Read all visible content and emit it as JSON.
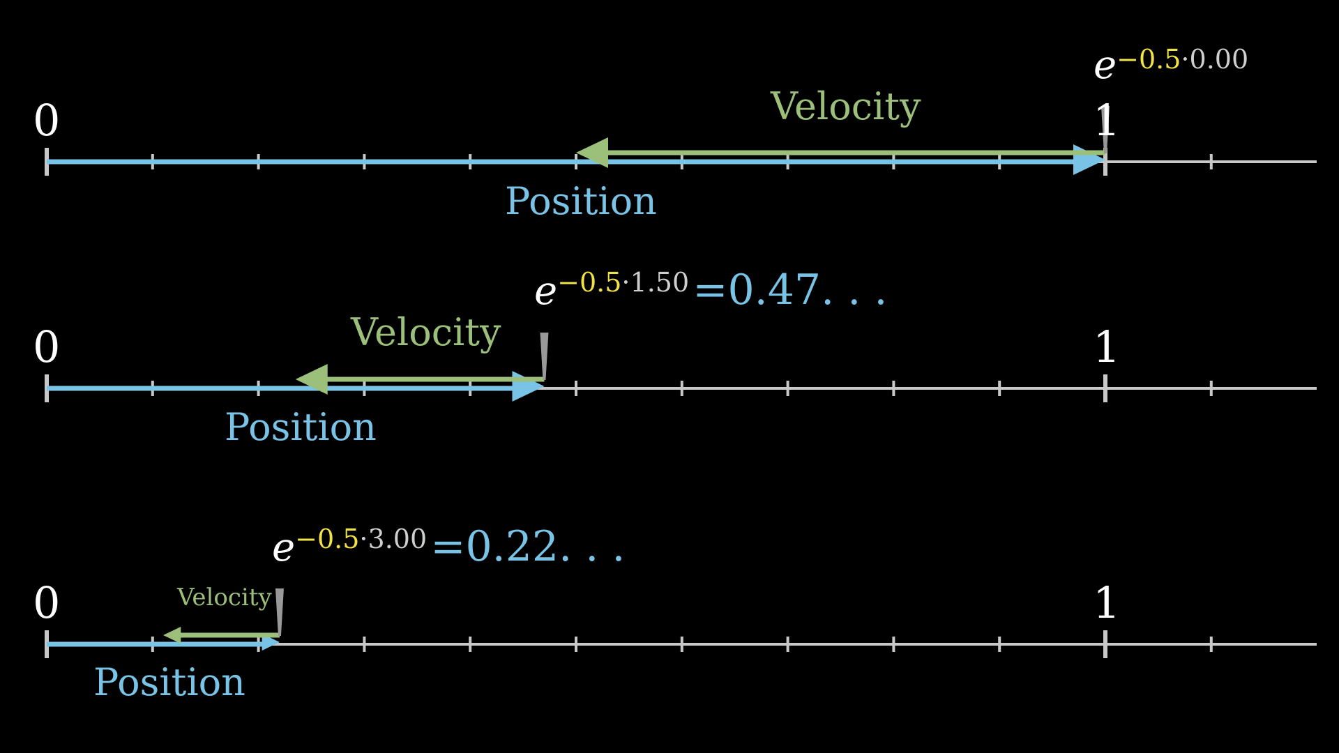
{
  "colors": {
    "background": "#000000",
    "axis": "#c8c8c8",
    "position": "#79c3e6",
    "velocity": "#9cbf7a",
    "rate": "#f1e347",
    "marker": "#999999"
  },
  "number_lines": [
    {
      "label_zero": "0",
      "label_one": "1",
      "position_label": "Position",
      "velocity_label": "Velocity",
      "exp_base": "e",
      "rate": "−0.5",
      "dot": "·",
      "time": "0.00",
      "result": "",
      "value": 1.0
    },
    {
      "label_zero": "0",
      "label_one": "1",
      "position_label": "Position",
      "velocity_label": "Velocity",
      "exp_base": "e",
      "rate": "−0.5",
      "dot": "·",
      "time": "1.50",
      "result": "=0.47. . .",
      "value": 0.47
    },
    {
      "label_zero": "0",
      "label_one": "1",
      "position_label": "Position",
      "velocity_label": "Velocity",
      "exp_base": "e",
      "rate": "−0.5",
      "dot": "·",
      "time": "3.00",
      "result": "=0.22. . .",
      "value": 0.22
    }
  ]
}
